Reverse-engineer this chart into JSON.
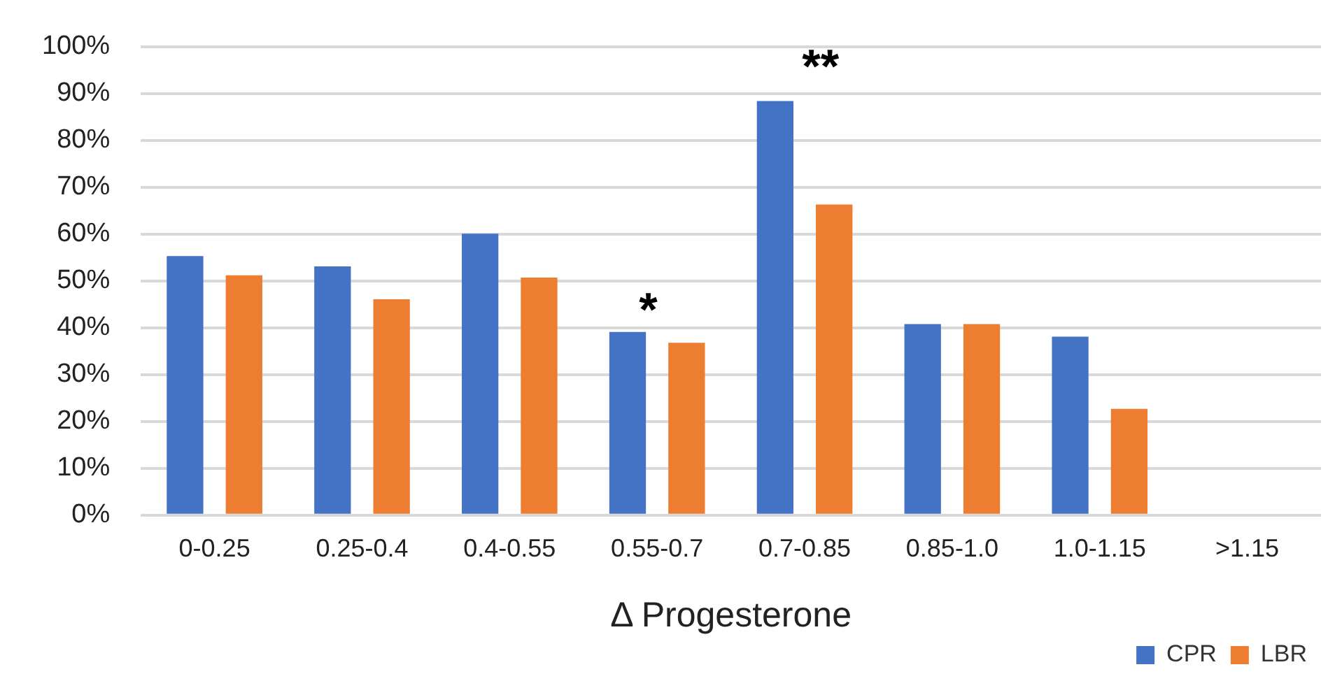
{
  "chart_data": {
    "type": "bar",
    "xlabel": "Δ Progesterone",
    "categories": [
      "0-0.25",
      "0.25-0.4",
      "0.4-0.55",
      "0.55-0.7",
      "0.7-0.85",
      "0.85-1.0",
      "1.0-1.15",
      ">1.15"
    ],
    "series": [
      {
        "name": "CPR",
        "color": "#4472c4",
        "values": [
          55.3,
          53.1,
          60.1,
          39.1,
          88.4,
          40.8,
          38.1,
          null
        ]
      },
      {
        "name": "LBR",
        "color": "#ed7d31",
        "values": [
          51.2,
          46.1,
          50.7,
          36.8,
          66.3,
          40.8,
          22.7,
          null
        ]
      }
    ],
    "ylim": [
      0,
      100
    ],
    "yticks": [
      {
        "value": 0,
        "label": "0%"
      },
      {
        "value": 10,
        "label": "10%"
      },
      {
        "value": 20,
        "label": "20%"
      },
      {
        "value": 30,
        "label": "30%"
      },
      {
        "value": 40,
        "label": "40%"
      },
      {
        "value": 50,
        "label": "50%"
      },
      {
        "value": 60,
        "label": "60%"
      },
      {
        "value": 70,
        "label": "70%"
      },
      {
        "value": 80,
        "label": "80%"
      },
      {
        "value": 90,
        "label": "90%"
      },
      {
        "value": 100,
        "label": "100%"
      }
    ],
    "grid": "y",
    "legend": "bottom right",
    "annotations": [
      "*",
      "**"
    ]
  }
}
